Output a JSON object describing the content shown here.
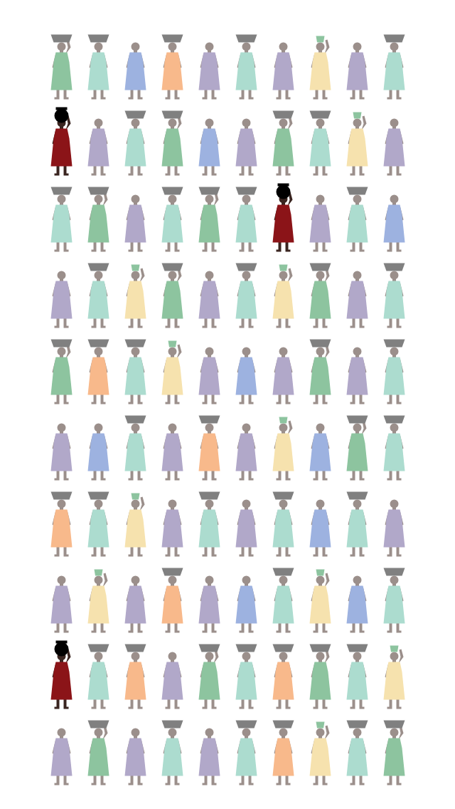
{
  "chart_data": {
    "type": "pictogram",
    "tick_labels": false,
    "series": [
      {
        "color": "#8dc49f",
        "marker": "basket-hand"
      },
      {
        "color": "#acdccf",
        "marker": "basket"
      },
      {
        "color": "#9db2e0",
        "marker": "none"
      },
      {
        "color": "#f8b98b",
        "marker": "basket"
      },
      {
        "color": "#b1a8c9",
        "marker": "none"
      },
      {
        "color": "#f6e2ae",
        "marker": "bucket"
      },
      {
        "color": "#8b1418",
        "marker": "pot"
      }
    ],
    "cells": [
      [
        0,
        1,
        2,
        3,
        4,
        1,
        4,
        5,
        4,
        1
      ],
      [
        6,
        4,
        1,
        0,
        2,
        4,
        0,
        1,
        5,
        4
      ],
      [
        1,
        0,
        4,
        1,
        0,
        1,
        6,
        4,
        1,
        2
      ],
      [
        4,
        1,
        5,
        0,
        4,
        1,
        5,
        0,
        4,
        1
      ],
      [
        0,
        3,
        1,
        5,
        4,
        2,
        4,
        0,
        4,
        1
      ],
      [
        4,
        2,
        1,
        4,
        3,
        4,
        5,
        2,
        0,
        1
      ],
      [
        3,
        1,
        5,
        4,
        1,
        4,
        1,
        2,
        1,
        4
      ],
      [
        4,
        5,
        4,
        3,
        4,
        2,
        1,
        5,
        2,
        1
      ],
      [
        6,
        1,
        3,
        4,
        0,
        1,
        3,
        0,
        1,
        5
      ],
      [
        4,
        0,
        4,
        1,
        4,
        1,
        3,
        5,
        1,
        0
      ]
    ]
  }
}
